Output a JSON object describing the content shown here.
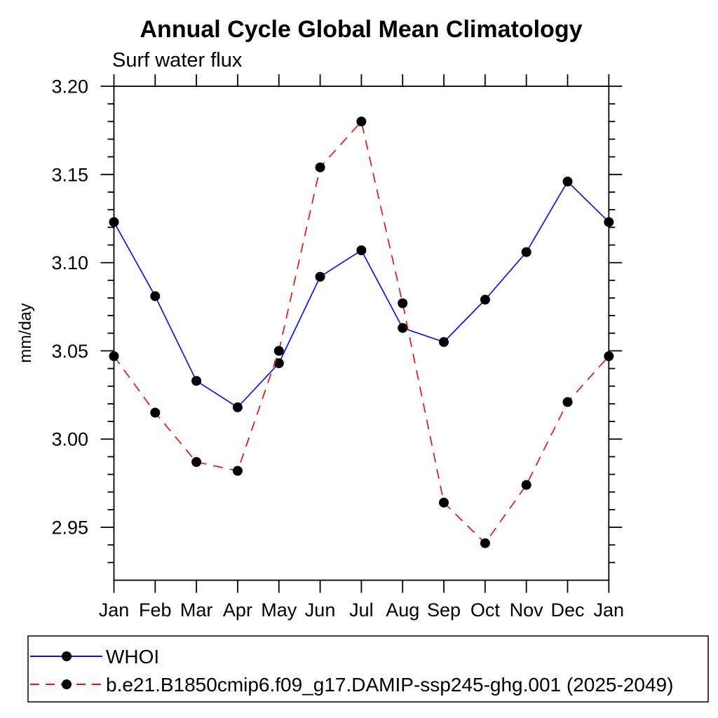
{
  "chart_data": {
    "type": "line",
    "title": "Annual Cycle Global Mean Climatology",
    "subtitle": "Surf water flux",
    "ylabel": "mm/day",
    "categories": [
      "Jan",
      "Feb",
      "Mar",
      "Apr",
      "May",
      "Jun",
      "Jul",
      "Aug",
      "Sep",
      "Oct",
      "Nov",
      "Dec",
      "Jan"
    ],
    "ylim": [
      2.92,
      3.2
    ],
    "y_major_tick_labels": [
      "2.95",
      "3.00",
      "3.05",
      "3.10",
      "3.15",
      "3.20"
    ],
    "y_minor_tick_step": 0.01,
    "grid": false,
    "legend_position": "bottom-left-box",
    "axis_color": "#000000",
    "marker_color": "#000000",
    "series": [
      {
        "name": "WHOI",
        "line_color": "#1111ee",
        "line_style": "solid",
        "marker": "filled-circle",
        "values": [
          3.123,
          3.081,
          3.033,
          3.018,
          3.043,
          3.092,
          3.107,
          3.063,
          3.055,
          3.079,
          3.106,
          3.146,
          3.123
        ]
      },
      {
        "name": "b.e21.B1850cmip6.f09_g17.DAMIP-ssp245-ghg.001 (2025-2049)",
        "line_color": "#ee1111",
        "line_style": "dashed",
        "marker": "filled-circle",
        "values": [
          3.047,
          3.015,
          2.987,
          2.982,
          3.05,
          3.154,
          3.18,
          3.077,
          2.964,
          2.941,
          2.974,
          3.021,
          3.047
        ]
      }
    ]
  }
}
